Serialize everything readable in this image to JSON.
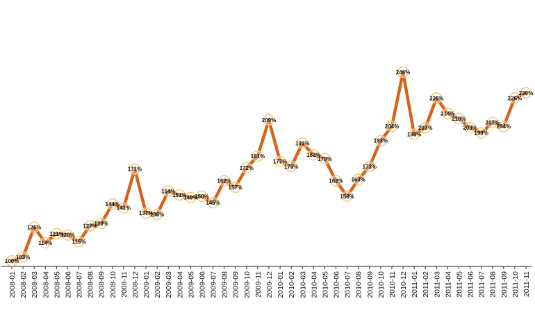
{
  "chart_data": {
    "type": "line",
    "title": "",
    "xlabel": "",
    "ylabel": "",
    "ylim": [
      90,
      260
    ],
    "grid": false,
    "legend": "none",
    "line_color": "#d4631c",
    "marker_color": "#f2c86b",
    "x": [
      "2008-01",
      "2008-02",
      "2008-03",
      "2008-04",
      "2008-05",
      "2008-06",
      "2008-07",
      "2008-08",
      "2008-09",
      "2008-10",
      "2008-11",
      "2008-12",
      "2009-01",
      "2009-02",
      "2009-03",
      "2009-04",
      "2009-05",
      "2009-06",
      "2009-07",
      "2009-08",
      "2009-09",
      "2009-10",
      "2009-11",
      "2009-12",
      "2010-01",
      "2010-02",
      "2010-03",
      "2010-04",
      "2010-05",
      "2010-06",
      "2010-07",
      "2010-08",
      "2010-09",
      "2010-10",
      "2010-11",
      "2010-12",
      "2011-01",
      "2011-02",
      "2011-03",
      "2011-04",
      "2011-05",
      "2011-06",
      "2011-07",
      "2011-08",
      "2011-09",
      "2011-10",
      "2011-11"
    ],
    "values": [
      100,
      103,
      126,
      114,
      121,
      120,
      115,
      127,
      129,
      144,
      141,
      171,
      137,
      136,
      154,
      151,
      149,
      150,
      145,
      162,
      157,
      172,
      181,
      209,
      177,
      173,
      191,
      182,
      179,
      162,
      150,
      163,
      173,
      193,
      204,
      246,
      198,
      203,
      226,
      214,
      210,
      203,
      199,
      207,
      204,
      226,
      230
    ],
    "data_labels": [
      "100%",
      "103%",
      "126%",
      "114%",
      "121%",
      "120%",
      "115%",
      "127%",
      "129%",
      "144%",
      "141%",
      "171%",
      "137%",
      "136%",
      "154%",
      "151%",
      "149%",
      "150%",
      "145%",
      "162%",
      "157%",
      "172%",
      "181%",
      "209%",
      "177%",
      "173%",
      "191%",
      "182%",
      "179%",
      "162%",
      "150%",
      "163%",
      "173%",
      "193%",
      "204%",
      "246%",
      "198%",
      "203%",
      "226%",
      "214%",
      "210%",
      "203%",
      "199%",
      "207%",
      "204%",
      "226%",
      "230%"
    ]
  }
}
